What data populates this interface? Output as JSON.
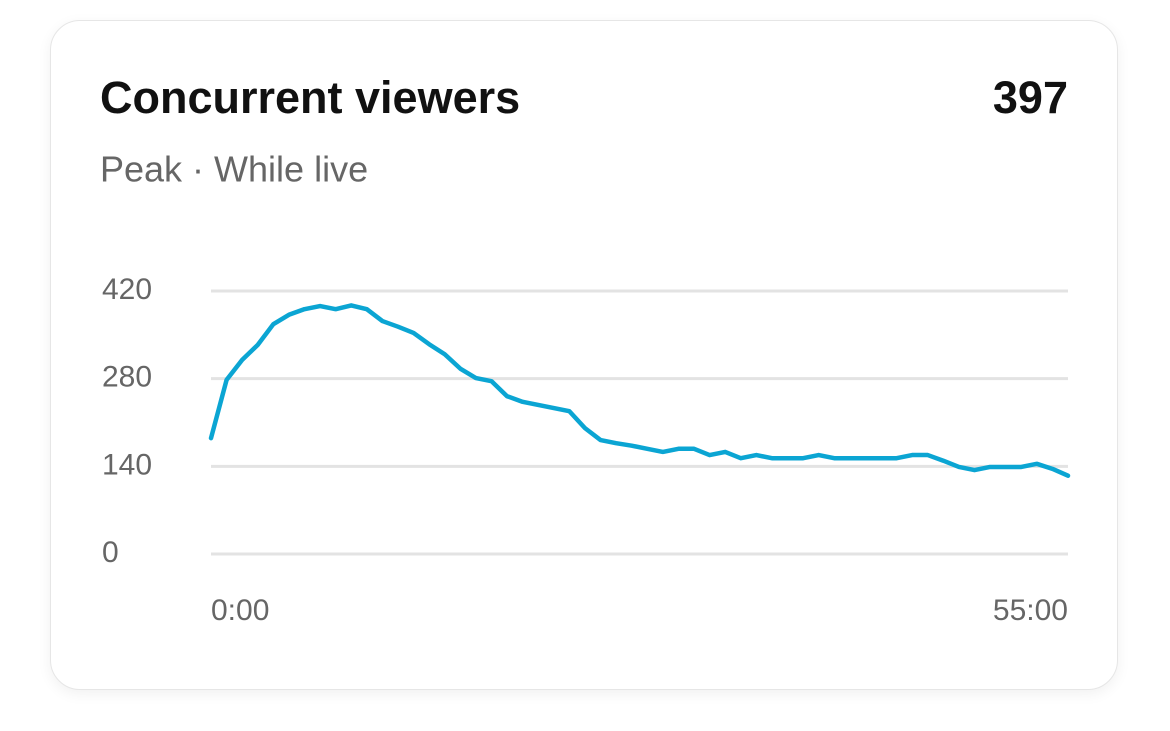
{
  "chart_data": {
    "type": "line",
    "title": "Concurrent viewers",
    "subtitle": "Peak · While live",
    "peak": 397,
    "x": [
      0,
      1,
      2,
      3,
      4,
      5,
      6,
      7,
      8,
      9,
      10,
      11,
      12,
      13,
      14,
      15,
      16,
      17,
      18,
      19,
      20,
      21,
      22,
      23,
      24,
      25,
      26,
      27,
      28,
      29,
      30,
      31,
      32,
      33,
      34,
      35,
      36,
      37,
      38,
      39,
      40,
      41,
      42,
      43,
      44,
      45,
      46,
      47,
      48,
      49,
      50,
      51,
      52,
      53,
      54,
      55
    ],
    "series": [
      {
        "color": "#0ba5d3",
        "values": [
          185,
          278,
          310,
          334,
          367,
          382,
          391,
          396,
          391,
          397,
          391,
          372,
          363,
          353,
          335,
          319,
          296,
          281,
          276,
          252,
          243,
          238,
          233,
          228,
          201,
          182,
          177,
          173,
          168,
          163,
          168,
          168,
          158,
          163,
          153,
          158,
          153,
          153,
          153,
          158,
          153,
          153,
          153,
          153,
          153,
          158,
          158,
          149,
          139,
          134,
          139,
          139,
          139,
          144,
          136,
          125
        ]
      }
    ],
    "xlim": [
      0,
      55
    ],
    "xticks": [
      {
        "value": 0,
        "label": "0:00"
      },
      {
        "value": 55,
        "label": "55:00"
      }
    ],
    "ylim": [
      0,
      420
    ],
    "yticks": [
      0,
      140,
      280,
      420
    ],
    "grid": true
  }
}
